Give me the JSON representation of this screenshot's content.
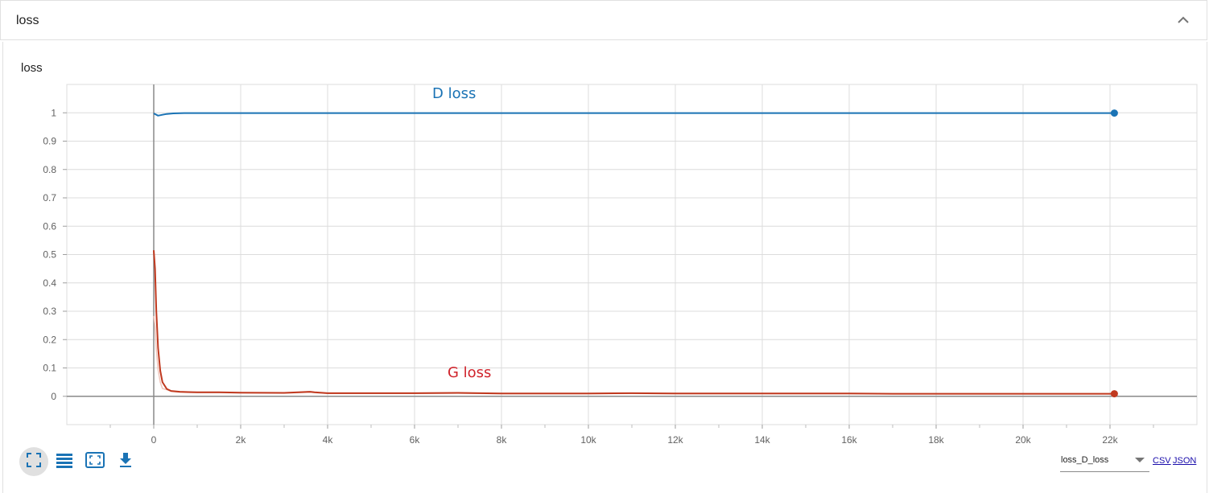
{
  "header": {
    "title": "loss"
  },
  "card": {
    "title": "loss"
  },
  "colors": {
    "d_loss": "#1a73b5",
    "g_loss": "#c0391f",
    "g_loss_raw": "#f0c6bc",
    "grid": "#dcdcdc",
    "axis": "#8a8a8a"
  },
  "icons": {
    "collapse": "chevron-up-icon",
    "fit": "fit-domain-icon",
    "log": "list-icon",
    "expand": "fullscreen-icon",
    "download": "download-icon"
  },
  "footer": {
    "series_select": "loss_D_loss",
    "csv": "CSV",
    "json": "JSON"
  },
  "chart_data": {
    "type": "line",
    "title": "loss",
    "xlim": [
      -2000,
      24000
    ],
    "ylim": [
      -0.1,
      1.1
    ],
    "x_ticks": [
      0,
      2000,
      4000,
      6000,
      8000,
      10000,
      12000,
      14000,
      16000,
      18000,
      20000,
      22000
    ],
    "x_tick_labels": [
      "0",
      "2k",
      "4k",
      "6k",
      "8k",
      "10k",
      "12k",
      "14k",
      "16k",
      "18k",
      "20k",
      "22k"
    ],
    "y_ticks": [
      0,
      0.1,
      0.2,
      0.3,
      0.4,
      0.5,
      0.6,
      0.7,
      0.8,
      0.9,
      1
    ],
    "y_tick_labels": [
      "0",
      "0.1",
      "0.2",
      "0.3",
      "0.4",
      "0.5",
      "0.6",
      "0.7",
      "0.8",
      "0.9",
      "1"
    ],
    "grid": true,
    "annotations": [
      "D loss",
      "G loss"
    ],
    "series": [
      {
        "name": "D loss",
        "x": [
          0,
          100,
          200,
          300,
          450,
          700,
          1000,
          2000,
          4000,
          8000,
          12000,
          16000,
          20000,
          22100
        ],
        "values": [
          0.998,
          0.99,
          0.993,
          0.996,
          0.998,
          0.999,
          0.999,
          0.999,
          0.999,
          0.999,
          0.999,
          0.999,
          0.999,
          0.999
        ]
      },
      {
        "name": "G loss",
        "x": [
          0,
          30,
          60,
          100,
          150,
          200,
          300,
          400,
          600,
          800,
          1000,
          1500,
          2000,
          3000,
          3600,
          3700,
          4000,
          5000,
          6000,
          7000,
          8000,
          9000,
          10000,
          11000,
          12000,
          13000,
          14000,
          15000,
          16000,
          17000,
          18000,
          19000,
          20000,
          21000,
          22100
        ],
        "values": [
          0.515,
          0.45,
          0.3,
          0.17,
          0.09,
          0.05,
          0.026,
          0.019,
          0.016,
          0.015,
          0.014,
          0.014,
          0.013,
          0.012,
          0.016,
          0.014,
          0.011,
          0.011,
          0.011,
          0.012,
          0.01,
          0.01,
          0.01,
          0.011,
          0.01,
          0.01,
          0.01,
          0.01,
          0.01,
          0.009,
          0.009,
          0.009,
          0.009,
          0.009,
          0.009
        ]
      }
    ]
  }
}
